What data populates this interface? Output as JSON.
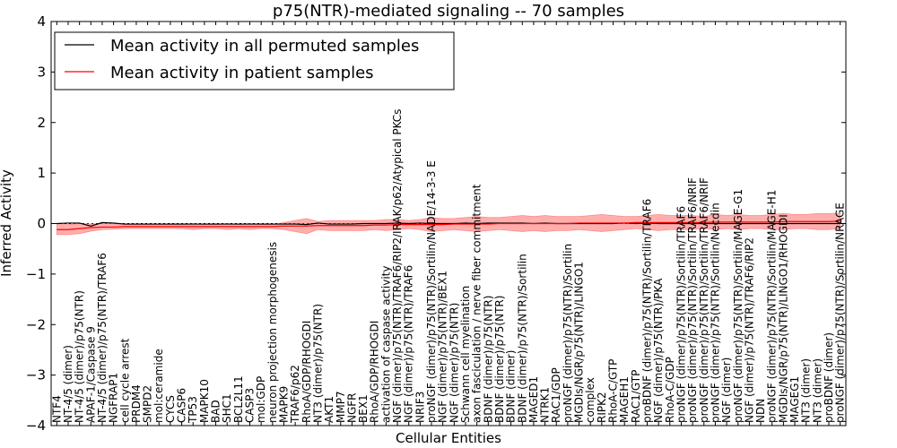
{
  "chart_data": {
    "type": "line",
    "title": "p75(NTR)-mediated signaling -- 70 samples",
    "xlabel": "Cellular Entities",
    "ylabel": "Inferred Activity",
    "ylim": [
      -4,
      4
    ],
    "yticks": [
      "4",
      "3",
      "2",
      "1",
      "0",
      "−1",
      "−2",
      "−3",
      "−4"
    ],
    "ytick_values": [
      4,
      3,
      2,
      1,
      0,
      -1,
      -2,
      -3,
      -4
    ],
    "legend": {
      "position": "top-left",
      "entries": [
        {
          "label": "Mean activity in all permuted samples",
          "color": "#000000"
        },
        {
          "label": "Mean activity in patient samples",
          "color": "#ff0000"
        }
      ]
    },
    "categories": [
      "NTF4",
      "NT-4/5 (dimer)",
      "NT-4/5 (dimer)/p75(NTR)",
      "APAF-1/Caspase 9",
      "NT-4/5 (dimer)/p75(NTR)/TRAF6",
      "NGFRAP1",
      "cell cycle arrest",
      "PRDM4",
      "SMPD2",
      "mol:ceramide",
      "CYCS",
      "CASP6",
      "TP53",
      "MAPK10",
      "BAD",
      "SHC1",
      "BCL2L11",
      "CASP3",
      "mol:GDP",
      "neuron projection morphogenesis",
      "MAPK9",
      "TRAF6/p62",
      "RhoA/GDP/RHOGDI",
      "NT3 (dimer)/p75(NTR)",
      "AKT1",
      "MMP7",
      "NGFR",
      "BEX1",
      "RhoA/GDP/RHOGDI",
      "activation of caspase activity",
      "NGF (dimer)/p75(NTR)/TRAF6/RIP2/IRAK/p62/Atypical PKCs",
      "NGF (dimer)/p75(NTR)/TRAF6",
      "NRIF3",
      "proNGF (dimer)/p75(NTR)/Sortilin/NADE/14-3-3 E",
      "NGF (dimer)/p75(NTR)/BEX1",
      "NGF (dimer)/p75(NTR)",
      "Schwann cell myelination",
      "axon fasciculation / nerve fiber commitment",
      "BDNF (dimer)/p75(NTR)",
      "BDNF (dimer)/p75(NTR)",
      "BDNF (dimer)",
      "BDNF (dimer)/p75(NTR)/Sortilin",
      "MAGED1",
      "NTRK1",
      "RAC1/GDP",
      "proNGF (dimer)/p75(NTR)/Sortilin",
      "MGDIs/NGR/p75(NTR)/LINGO1",
      "complex",
      "RIPK2",
      "RhoA-C/GTP",
      "MAGEH1",
      "RAC1/GTP",
      "proBDNF (dimer)/p75(NTR)/Sortilin/TRAF6",
      "NGF (dimer)/p75(NTR)/PKA",
      "RhoA-C/GDP",
      "proNGF (dimer)/p75(NTR)/Sortilin/TRAF6",
      "proNGF (dimer)/p75(NTR)/Sortilin/TRAF6/NRIF",
      "proNGF (dimer)/p75(NTR)/Sortilin/TRAF6/NRIF",
      "proNGF (dimer)/p75(NTR)/Sortilin/Necdin",
      "NGF (dimer)",
      "proNGF (dimer)/p75(NTR)/Sortilin/MAGE-G1",
      "NGF (dimer)/p75(NTR)/TRAF6/RIP2",
      "NDN",
      "proNGF (dimer)/p75(NTR)/Sortilin/MAGE-H1",
      "MGDIs/NGR/p75(NTR)/LINGO1/RHOGDI",
      "MAGEG1",
      "NT3 (dimer)",
      "NT3 (dimer)",
      "proBDNF (dimer)",
      "proNGF (dimer)/p75(NTR)/Sortilin/NRAGE"
    ],
    "series": [
      {
        "name": "Mean activity in all permuted samples",
        "color": "#000000",
        "values": [
          0.0,
          0.01,
          0.01,
          -0.05,
          0.02,
          0.01,
          -0.01,
          -0.01,
          -0.01,
          -0.01,
          -0.01,
          -0.01,
          -0.01,
          -0.01,
          -0.01,
          -0.01,
          -0.01,
          -0.01,
          -0.01,
          -0.01,
          -0.01,
          -0.01,
          -0.02,
          0.01,
          -0.01,
          -0.01,
          -0.01,
          0.0,
          0.0,
          0.0,
          0.01,
          0.0,
          0.01,
          0.0,
          0.0,
          0.0,
          0.01,
          0.0,
          0.01,
          0.01,
          0.01,
          0.01,
          0.0,
          0.01,
          0.0,
          0.0,
          0.0,
          0.0,
          0.0,
          0.0,
          0.01,
          0.0,
          0.01,
          0.0,
          0.0,
          0.0,
          0.0,
          0.0,
          0.0,
          0.0,
          0.0,
          0.0,
          0.0,
          0.0,
          0.0,
          0.0,
          0.0,
          0.0,
          0.0,
          0.0
        ]
      },
      {
        "name": "Mean activity in patient samples",
        "color": "#ff0000",
        "values": [
          -0.12,
          -0.12,
          -0.1,
          -0.08,
          -0.07,
          -0.07,
          -0.06,
          -0.06,
          -0.06,
          -0.06,
          -0.06,
          -0.06,
          -0.06,
          -0.06,
          -0.06,
          -0.06,
          -0.06,
          -0.06,
          -0.06,
          -0.06,
          -0.05,
          -0.05,
          -0.05,
          -0.04,
          -0.04,
          -0.04,
          -0.04,
          -0.04,
          -0.03,
          -0.03,
          -0.02,
          -0.02,
          -0.02,
          -0.02,
          -0.02,
          -0.01,
          -0.01,
          -0.01,
          -0.01,
          0.0,
          0.0,
          0.0,
          0.0,
          0.0,
          0.0,
          0.0,
          0.01,
          0.01,
          0.01,
          0.01,
          0.01,
          0.02,
          0.02,
          0.02,
          0.02,
          0.02,
          0.02,
          0.02,
          0.03,
          0.03,
          0.03,
          0.03,
          0.03,
          0.03,
          0.04,
          0.04,
          0.04,
          0.04,
          0.04,
          0.05
        ]
      }
    ],
    "band": {
      "name": "patient spread",
      "color": "#ff6b6b",
      "lower": [
        -0.22,
        -0.22,
        -0.2,
        -0.15,
        -0.12,
        -0.11,
        -0.1,
        -0.1,
        -0.1,
        -0.1,
        -0.1,
        -0.1,
        -0.12,
        -0.1,
        -0.1,
        -0.12,
        -0.1,
        -0.12,
        -0.1,
        -0.1,
        -0.12,
        -0.16,
        -0.2,
        -0.12,
        -0.14,
        -0.14,
        -0.14,
        -0.14,
        -0.12,
        -0.14,
        -0.12,
        -0.1,
        -0.12,
        -0.16,
        -0.14,
        -0.12,
        -0.14,
        -0.16,
        -0.14,
        -0.12,
        -0.14,
        -0.16,
        -0.14,
        -0.16,
        -0.14,
        -0.14,
        -0.12,
        -0.14,
        -0.16,
        -0.14,
        -0.12,
        -0.1,
        -0.12,
        -0.14,
        -0.12,
        -0.12,
        -0.12,
        -0.1,
        -0.12,
        -0.1,
        -0.12,
        -0.1,
        -0.1,
        -0.12,
        -0.12,
        -0.1,
        -0.1,
        -0.12,
        -0.12,
        -0.1
      ],
      "upper": [
        -0.02,
        -0.02,
        0.0,
        -0.01,
        0.0,
        0.0,
        -0.02,
        -0.02,
        -0.02,
        -0.02,
        -0.02,
        -0.02,
        0.0,
        -0.02,
        -0.02,
        0.0,
        -0.02,
        0.0,
        -0.02,
        -0.02,
        0.02,
        0.06,
        0.1,
        0.04,
        0.06,
        0.06,
        0.06,
        0.06,
        0.06,
        0.08,
        0.08,
        0.06,
        0.08,
        0.12,
        0.1,
        0.1,
        0.12,
        0.14,
        0.12,
        0.12,
        0.14,
        0.16,
        0.14,
        0.16,
        0.14,
        0.14,
        0.14,
        0.16,
        0.18,
        0.16,
        0.14,
        0.14,
        0.16,
        0.18,
        0.16,
        0.16,
        0.16,
        0.14,
        0.18,
        0.16,
        0.18,
        0.16,
        0.16,
        0.18,
        0.2,
        0.18,
        0.18,
        0.2,
        0.2,
        0.2
      ]
    }
  }
}
